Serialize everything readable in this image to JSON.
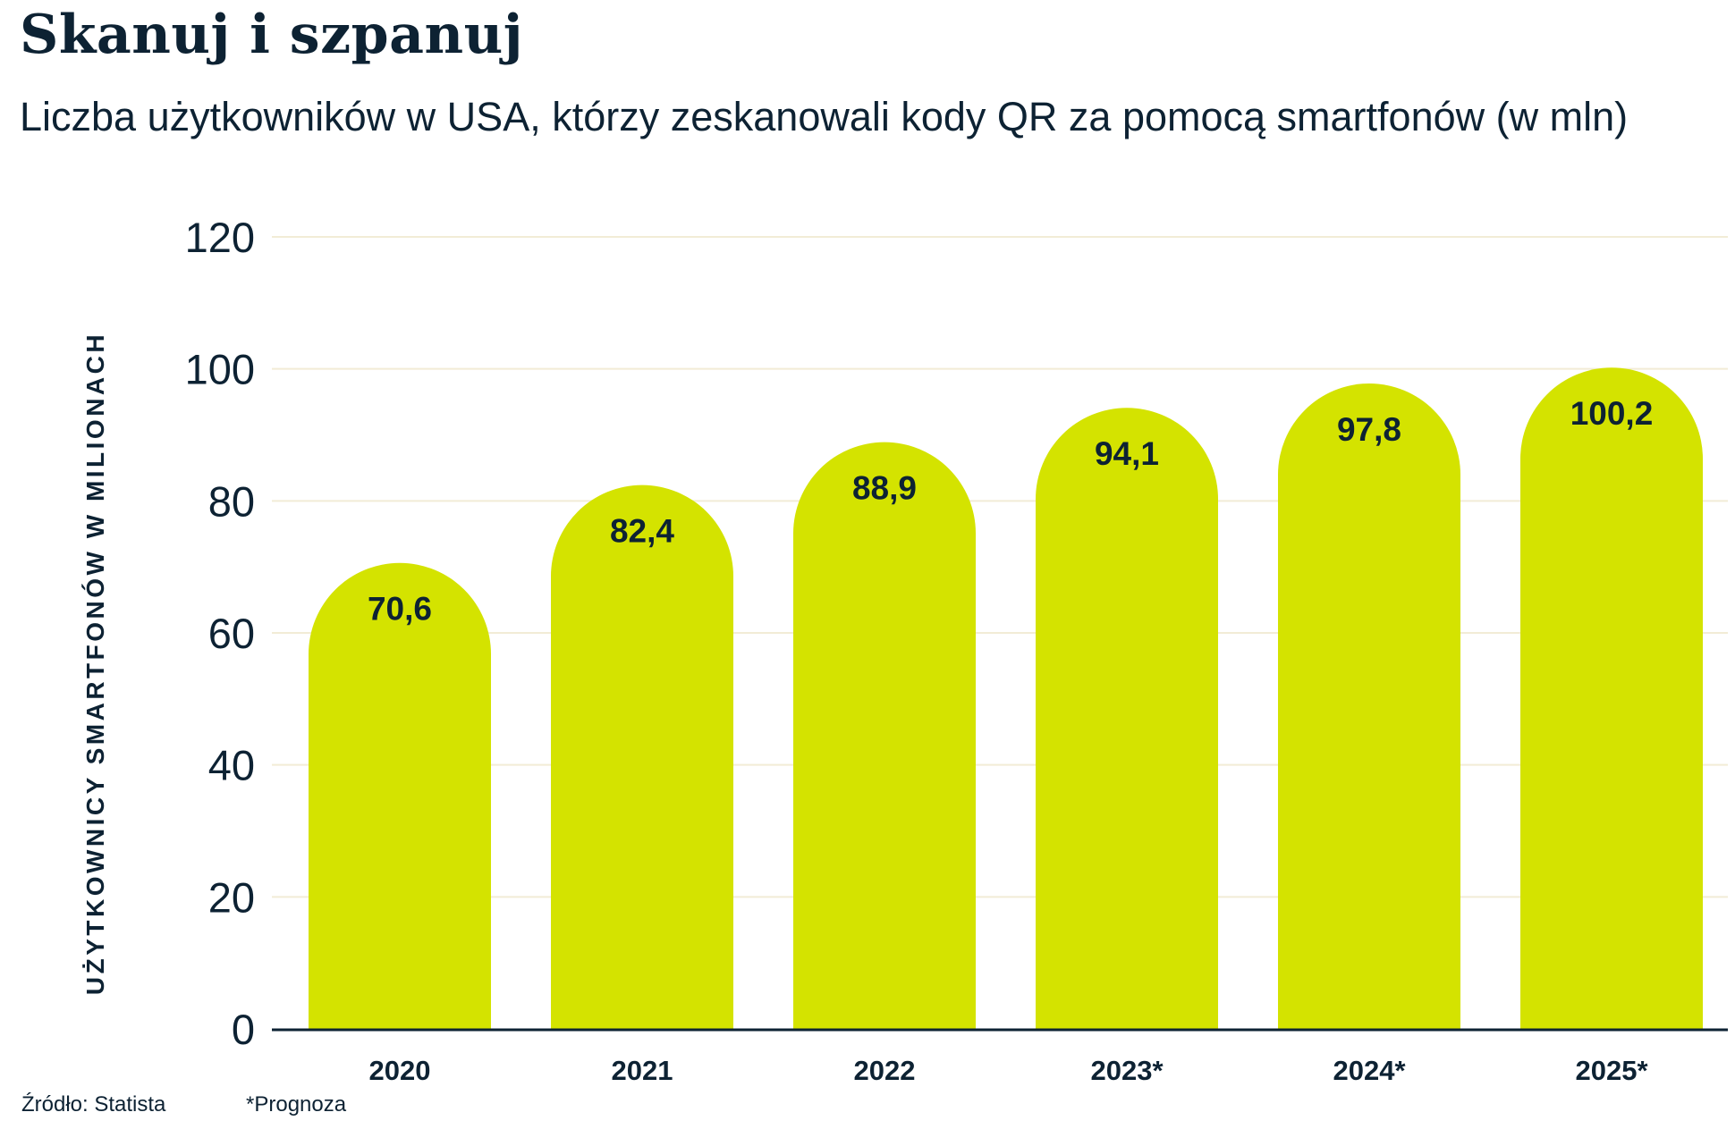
{
  "title": "Skanuj i szpanuj",
  "subtitle": "Liczba użytkowników w USA, którzy zeskanowali kody QR za pomocą smartfonów (w mln)",
  "footer": {
    "source": "Źródło: Statista",
    "note": "*Prognoza"
  },
  "colors": {
    "bar": "#d4e300",
    "text": "#0d2233",
    "grid": "#f2ecd6"
  },
  "chart_data": {
    "type": "bar",
    "title": "",
    "xlabel": "",
    "ylabel": "UŻYTKOWNICY SMARTFONÓW W MILIONACH",
    "categories": [
      "2020",
      "2021",
      "2022",
      "2023*",
      "2024*",
      "2025*"
    ],
    "values": [
      70.6,
      82.4,
      88.9,
      94.1,
      97.8,
      100.2
    ],
    "value_labels": [
      "70,6",
      "82,4",
      "88,9",
      "94,1",
      "97,8",
      "100,2"
    ],
    "ylim": [
      0,
      120
    ],
    "yticks": [
      0,
      20,
      40,
      60,
      80,
      100,
      120
    ],
    "grid": true,
    "legend": "none"
  }
}
